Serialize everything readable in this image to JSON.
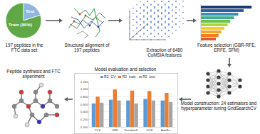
{
  "pie": {
    "labels": [
      "Test",
      "Train (80%)"
    ],
    "values": [
      20,
      80
    ],
    "colors": [
      "#8fb6e0",
      "#5fa845"
    ]
  },
  "captions": {
    "dataset": "197 peptides in the FTC data set",
    "alignment": "Structural alignment of 197 peptides",
    "features": "Extraction of 6480 CoMSIA features",
    "selection": "Feature selection (GBR-RFE, ERFE, SFM)",
    "model": "Model construction: 24 estimators and hyperparameter tuning GridSearchCV",
    "evaluation": "Model evaluation and selection",
    "synthesis": "Peptide synthesis and FTC experiment"
  },
  "feature_chart": {
    "type": "bar",
    "orientation": "horizontal",
    "tick_labels": false,
    "values": [
      95,
      80,
      70,
      62,
      55,
      50,
      44,
      38,
      33,
      28
    ],
    "colors": [
      "#1f3b73",
      "#2e5fa1",
      "#3a8fb7",
      "#3fae8f",
      "#6cc24a",
      "#b5d334",
      "#f2d027",
      "#f5a623",
      "#ef7d22",
      "#e4572e"
    ]
  },
  "chart_data": {
    "type": "bar",
    "grid": true,
    "legend": "top",
    "categories": [
      "PLS",
      "GBR",
      "RandomF...",
      "XGB",
      "AdaBo..."
    ],
    "series": [
      {
        "name": "R2_CV",
        "color": "#5b9bd5",
        "values": [
          0.62,
          0.72,
          0.7,
          0.74,
          0.7
        ]
      },
      {
        "name": "R2_train",
        "color": "#ed7d31",
        "values": [
          0.8,
          0.99,
          0.96,
          0.95,
          0.9
        ]
      },
      {
        "name": "R2_test",
        "color": "#a5a5a5",
        "values": [
          0.64,
          0.7,
          0.62,
          0.7,
          0.66
        ]
      }
    ],
    "ylim": [
      0,
      1.2
    ],
    "yticks": [
      {
        "value": 0,
        "label": "0.000"
      },
      {
        "value": 0.2,
        "label": "0.200"
      },
      {
        "value": 0.4,
        "label": "0.400"
      },
      {
        "value": 0.6,
        "label": "0.600"
      },
      {
        "value": 0.8,
        "label": "0.800"
      },
      {
        "value": 1.0,
        "label": "1.000"
      },
      {
        "value": 1.2,
        "label": "1.200"
      }
    ]
  }
}
